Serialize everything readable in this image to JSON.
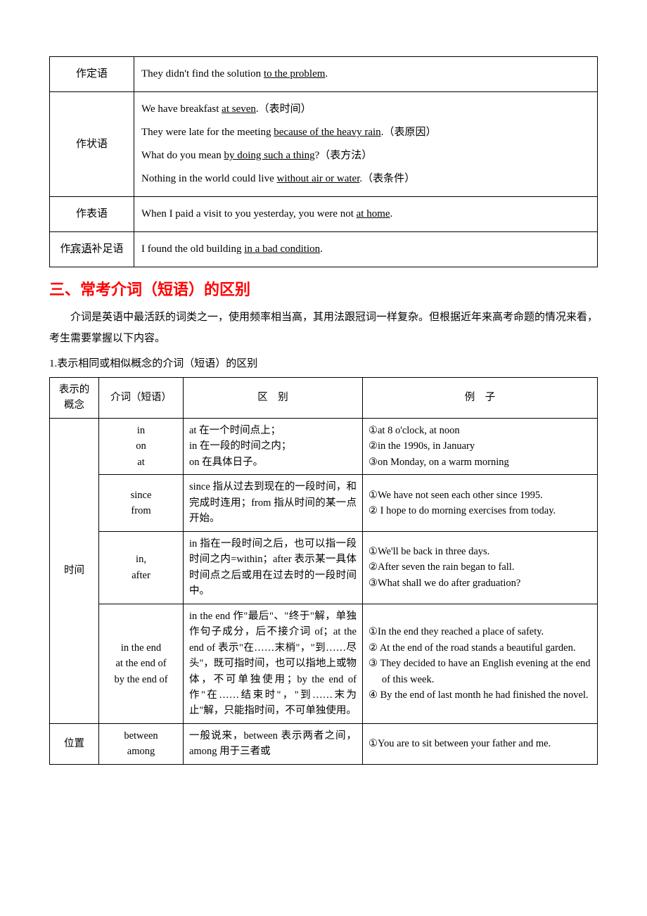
{
  "table1": {
    "rows": [
      {
        "label": "作定语",
        "lines": [
          "They didn't find the solution <u>to the problem</u>."
        ]
      },
      {
        "label": "作状语",
        "lines": [
          "We have breakfast <u>at seven</u>.（表时间）",
          "They were late for the meeting <u>because of the heavy rain</u>.（表原因）",
          "What do you mean <u>by doing such a thing</u>?（表方法）",
          "Nothing in the world could live <u>without air or water</u>.（表条件）"
        ]
      },
      {
        "label": "作表语",
        "lines": [
          "When I paid a visit to you yesterday, you were not <u>at home</u>."
        ]
      },
      {
        "label": "作<du>宾语</du>补足语",
        "lines": [
          "I found the old building <u>in a bad condition</u>."
        ]
      }
    ]
  },
  "section_title": "三、常考介词（短语）的区别",
  "intro": "介词是英语中最活跃的词类之一，使用频率相当高，其用法跟冠词一样复杂。但根据近年来高考命题的情况来看，考生需要掌握以下内容。",
  "subheading": "1.表示相同或相似概念的介词（短语）的区别",
  "table2": {
    "head": [
      "表示的概念",
      "介词（短语）",
      "区　别",
      "例　子"
    ],
    "groups": [
      {
        "concept": "时间",
        "rows": [
          {
            "prep": "in<br>on<br>at",
            "desc": "at 在一个时间点上；<br>in 在一段的时间之内；<br>on 在具体日子。",
            "ex": [
              "①at 8 o'clock, at noon",
              "②in the 1990s, in January",
              "③on Monday, on a warm morning"
            ]
          },
          {
            "prep": "since<br>from",
            "desc": "since 指从过去到现在的一段时间，和完成时连用；from 指从时间的某一点开始。",
            "ex": [
              "①We have not seen each other since 1995.",
              "② I hope to do morning exercises from today."
            ]
          },
          {
            "prep": "in,<br>after",
            "desc": "in 指在一段时间之后，也可以指一段时间之内=within；after 表示某一具体时间点之后或用在过去时的一段时间中。",
            "ex": [
              "①We'll be back in three days.",
              "②After seven the rain began to fall.",
              "③What shall we do after graduation?"
            ]
          },
          {
            "prep": "in the end<br>at the end of<br>by the end of",
            "desc": "in the end 作\"最后\"、\"终于\"解，单独作句子成分，后不接介词 of；at the end of 表示\"在……末梢\"，\"到……尽头\"，既可指时间，也可以指地上或物体，不可单独使用；by the end of 作\"在……结束时\"，\"到……末为止\"解，只能指时间，不可单独使用。",
            "ex": [
              "①In the end they reached a place of safety.",
              "② At the end of the road stands a beautiful garden.",
              "③ They decided to have an English evening at the end of this week.",
              "④ By the end of last month he had finished the novel."
            ]
          }
        ]
      },
      {
        "concept": "位置",
        "rows": [
          {
            "prep": "between<br>among",
            "desc": "一般说来，between 表示两者之间，among 用于三者或",
            "ex": [
              "①You are to sit between your father and me."
            ]
          }
        ]
      }
    ]
  }
}
